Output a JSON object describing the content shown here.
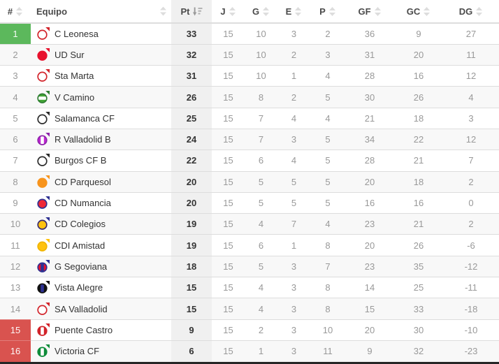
{
  "header": {
    "columns": [
      {
        "label": "#",
        "sort": "inactive"
      },
      {
        "label": "Equipo",
        "sort": "inactive"
      },
      {
        "label": "Pt",
        "sort": "desc-active"
      },
      {
        "label": "J",
        "sort": "inactive"
      },
      {
        "label": "G",
        "sort": "inactive"
      },
      {
        "label": "E",
        "sort": "inactive"
      },
      {
        "label": "P",
        "sort": "inactive"
      },
      {
        "label": "GF",
        "sort": "inactive"
      },
      {
        "label": "GC",
        "sort": "inactive"
      },
      {
        "label": "DG",
        "sort": "inactive"
      }
    ]
  },
  "colors": {
    "promotion_bg": "#5cb85c",
    "relegation_bg": "#d9534f",
    "row_stripe": "#f8f8f8",
    "pt_column_bg": "#f0f0f0",
    "sort_icon_inactive": "#dddddd",
    "sort_icon_active": "#999999"
  },
  "rows": [
    {
      "rank": "1",
      "zone": "promotion",
      "team": "C Leonesa",
      "logo": {
        "fill": "#ffffff",
        "ring": "#d2232a",
        "stripe": "none",
        "stripe_color": "",
        "flag": "#d2232a"
      },
      "pt": "33",
      "j": "15",
      "g": "10",
      "e": "3",
      "p": "2",
      "gf": "36",
      "gc": "9",
      "dg": "27"
    },
    {
      "rank": "2",
      "zone": "",
      "team": "UD Sur",
      "logo": {
        "fill": "#e8112d",
        "ring": "#e8112d",
        "stripe": "none",
        "stripe_color": "",
        "flag": "#e8112d"
      },
      "pt": "32",
      "j": "15",
      "g": "10",
      "e": "2",
      "p": "3",
      "gf": "31",
      "gc": "20",
      "dg": "11"
    },
    {
      "rank": "3",
      "zone": "",
      "team": "Sta Marta",
      "logo": {
        "fill": "#ffffff",
        "ring": "#d2232a",
        "stripe": "none",
        "stripe_color": "",
        "flag": "#d2232a"
      },
      "pt": "31",
      "j": "15",
      "g": "10",
      "e": "1",
      "p": "4",
      "gf": "28",
      "gc": "16",
      "dg": "12"
    },
    {
      "rank": "4",
      "zone": "",
      "team": "V Camino",
      "logo": {
        "fill": "#43a535",
        "ring": "#2e7d32",
        "stripe": "horizontal",
        "stripe_color": "#ffffff",
        "flag": "#2e7d32"
      },
      "pt": "26",
      "j": "15",
      "g": "8",
      "e": "2",
      "p": "5",
      "gf": "30",
      "gc": "26",
      "dg": "4"
    },
    {
      "rank": "5",
      "zone": "",
      "team": "Salamanca CF",
      "logo": {
        "fill": "#ffffff",
        "ring": "#2b2b2b",
        "stripe": "none",
        "stripe_color": "",
        "flag": "#2b2b2b"
      },
      "pt": "25",
      "j": "15",
      "g": "7",
      "e": "4",
      "p": "4",
      "gf": "21",
      "gc": "18",
      "dg": "3"
    },
    {
      "rank": "6",
      "zone": "",
      "team": "R Valladolid B",
      "logo": {
        "fill": "#c026d3",
        "ring": "#8e24aa",
        "stripe": "vertical",
        "stripe_color": "#ffffff",
        "flag": "#8e24aa"
      },
      "pt": "24",
      "j": "15",
      "g": "7",
      "e": "3",
      "p": "5",
      "gf": "34",
      "gc": "22",
      "dg": "12"
    },
    {
      "rank": "7",
      "zone": "",
      "team": "Burgos CF B",
      "logo": {
        "fill": "#ffffff",
        "ring": "#2b2b2b",
        "stripe": "none",
        "stripe_color": "",
        "flag": "#2b2b2b"
      },
      "pt": "22",
      "j": "15",
      "g": "6",
      "e": "4",
      "p": "5",
      "gf": "28",
      "gc": "21",
      "dg": "7"
    },
    {
      "rank": "8",
      "zone": "",
      "team": "CD Parquesol",
      "logo": {
        "fill": "#f7941d",
        "ring": "#f7941d",
        "stripe": "none",
        "stripe_color": "",
        "flag": "#f7941d"
      },
      "pt": "20",
      "j": "15",
      "g": "5",
      "e": "5",
      "p": "5",
      "gf": "20",
      "gc": "18",
      "dg": "2"
    },
    {
      "rank": "9",
      "zone": "",
      "team": "CD Numancia",
      "logo": {
        "fill": "#ee2737",
        "ring": "#2e3192",
        "stripe": "none",
        "stripe_color": "",
        "flag": "#2e3192"
      },
      "pt": "20",
      "j": "15",
      "g": "5",
      "e": "5",
      "p": "5",
      "gf": "16",
      "gc": "16",
      "dg": "0"
    },
    {
      "rank": "10",
      "zone": "",
      "team": "CD Colegios",
      "logo": {
        "fill": "#ffc20e",
        "ring": "#3a2a6b",
        "stripe": "none",
        "stripe_color": "",
        "flag": "#2e3192"
      },
      "pt": "19",
      "j": "15",
      "g": "4",
      "e": "7",
      "p": "4",
      "gf": "23",
      "gc": "21",
      "dg": "2"
    },
    {
      "rank": "11",
      "zone": "",
      "team": "CDI Amistad",
      "logo": {
        "fill": "#ffc20e",
        "ring": "#f0b400",
        "stripe": "none",
        "stripe_color": "",
        "flag": "#ffc20e"
      },
      "pt": "19",
      "j": "15",
      "g": "6",
      "e": "1",
      "p": "8",
      "gf": "20",
      "gc": "26",
      "dg": "-6"
    },
    {
      "rank": "12",
      "zone": "",
      "team": "G Segoviana",
      "logo": {
        "fill": "#e8112d",
        "ring": "#2e3192",
        "stripe": "vertical",
        "stripe_color": "#2e3192",
        "flag": "#2e3192"
      },
      "pt": "18",
      "j": "15",
      "g": "5",
      "e": "3",
      "p": "7",
      "gf": "23",
      "gc": "35",
      "dg": "-12"
    },
    {
      "rank": "13",
      "zone": "",
      "team": "Vista Alegre",
      "logo": {
        "fill": "#111111",
        "ring": "#111111",
        "stripe": "vertical",
        "stripe_color": "#2e3192",
        "flag": "#111111"
      },
      "pt": "15",
      "j": "15",
      "g": "4",
      "e": "3",
      "p": "8",
      "gf": "14",
      "gc": "25",
      "dg": "-11"
    },
    {
      "rank": "14",
      "zone": "",
      "team": "SA Valladolid",
      "logo": {
        "fill": "#ffffff",
        "ring": "#d2232a",
        "stripe": "none",
        "stripe_color": "",
        "flag": "#d2232a"
      },
      "pt": "15",
      "j": "15",
      "g": "4",
      "e": "3",
      "p": "8",
      "gf": "15",
      "gc": "33",
      "dg": "-18"
    },
    {
      "rank": "15",
      "zone": "relegation",
      "team": "Puente Castro",
      "logo": {
        "fill": "#d2232a",
        "ring": "#d2232a",
        "stripe": "vertical",
        "stripe_color": "#ffffff",
        "flag": "#d2232a"
      },
      "pt": "9",
      "j": "15",
      "g": "2",
      "e": "3",
      "p": "10",
      "gf": "20",
      "gc": "30",
      "dg": "-10"
    },
    {
      "rank": "16",
      "zone": "relegation",
      "team": "Victoria CF",
      "logo": {
        "fill": "#0e8c3a",
        "ring": "#0e8c3a",
        "stripe": "vertical",
        "stripe_color": "#ffffff",
        "flag": "#0e8c3a"
      },
      "pt": "6",
      "j": "15",
      "g": "1",
      "e": "3",
      "p": "11",
      "gf": "9",
      "gc": "32",
      "dg": "-23"
    }
  ]
}
